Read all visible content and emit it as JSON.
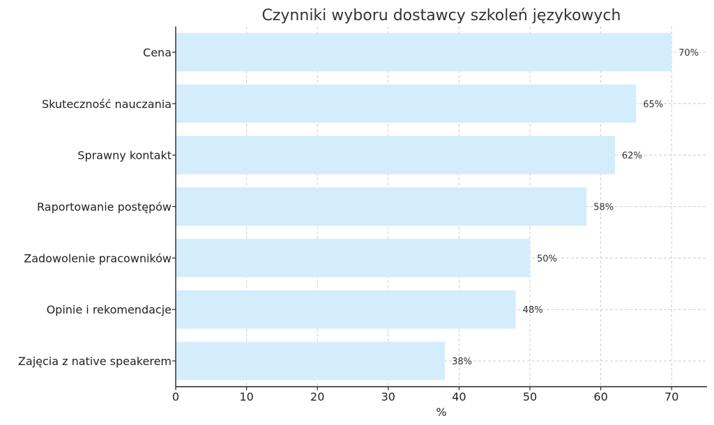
{
  "chart_data": {
    "type": "bar",
    "orientation": "horizontal",
    "title": "Czynniki wyboru dostawcy szkoleń językowych",
    "xlabel": "%",
    "ylabel": "",
    "xlim": [
      0,
      75
    ],
    "xticks": [
      0,
      10,
      20,
      30,
      40,
      50,
      60,
      70
    ],
    "grid": true,
    "bar_color": "#d4edfc",
    "categories": [
      "Cena",
      "Skuteczność nauczania",
      "Sprawny kontakt",
      "Raportowanie postępów",
      "Zadowolenie pracowników",
      "Opinie i rekomendacje",
      "Zajęcia z native speakerem"
    ],
    "values": [
      70,
      65,
      62,
      58,
      50,
      48,
      38
    ],
    "value_labels": [
      "70%",
      "65%",
      "62%",
      "58%",
      "50%",
      "48%",
      "38%"
    ]
  }
}
